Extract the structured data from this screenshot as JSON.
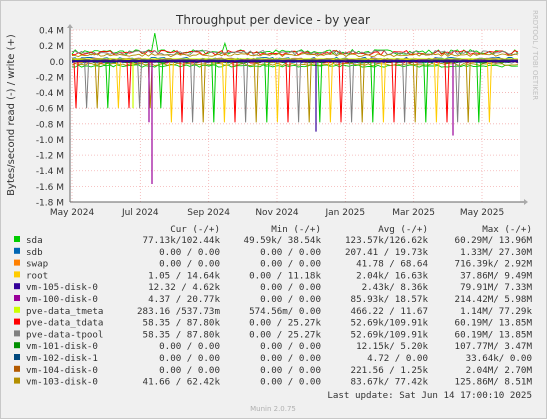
{
  "chart_data": {
    "type": "line",
    "title": "Throughput per device - by year",
    "ylabel": "Bytes/second read (-) / write (+)",
    "ylim": [
      -1800000,
      400000
    ],
    "yticks": [
      "0.4 M",
      "0.2 M",
      "0.0",
      "-0.2 M",
      "-0.4 M",
      "-0.6 M",
      "-0.8 M",
      "-1.0 M",
      "-1.2 M",
      "-1.4 M",
      "-1.6 M",
      "-1.8 M"
    ],
    "xticks": [
      "May 2024",
      "Jul 2024",
      "Sep 2024",
      "Nov 2024",
      "Jan 2025",
      "Mar 2025",
      "May 2025"
    ],
    "grid": true,
    "watermark": "RRDTOOL / TOBI OETIKER",
    "legend_header": [
      "Cur (-/+)",
      "Min (-/+)",
      "Avg (-/+)",
      "Max (-/+)"
    ],
    "series": [
      {
        "name": "sda",
        "color": "#00cc00",
        "cur": "77.13k/102.44k",
        "min": "49.59k/ 38.54k",
        "avg": "123.57k/126.62k",
        "max": "60.29M/ 13.96M"
      },
      {
        "name": "sdb",
        "color": "#0066b3",
        "cur": "0.00 /  0.00",
        "min": "0.00 /  0.00",
        "avg": "207.41 / 19.73k",
        "max": "1.33M/ 27.30M"
      },
      {
        "name": "swap",
        "color": "#ff8000",
        "cur": "0.00 /  0.00",
        "min": "0.00 /  0.00",
        "avg": "41.78 / 68.64",
        "max": "716.39k/  2.92M"
      },
      {
        "name": "root",
        "color": "#ffcc00",
        "cur": "1.05 / 14.64k",
        "min": "0.00 / 11.18k",
        "avg": "2.04k/ 16.63k",
        "max": "37.86M/  9.49M"
      },
      {
        "name": "vm-105-disk-0",
        "color": "#330099",
        "cur": "12.32 /  4.62k",
        "min": "0.00 /  0.00",
        "avg": "2.43k/  8.36k",
        "max": "79.91M/  7.33M"
      },
      {
        "name": "vm-100-disk-0",
        "color": "#990099",
        "cur": "4.37 / 20.77k",
        "min": "0.00 /  0.00",
        "avg": "85.93k/ 18.57k",
        "max": "214.42M/  5.98M"
      },
      {
        "name": "pve-data_tmeta",
        "color": "#ccff00",
        "cur": "283.16 /537.73m",
        "min": "574.56m/  0.00",
        "avg": "466.22 / 11.67",
        "max": "1.14M/ 77.29k"
      },
      {
        "name": "pve-data_tdata",
        "color": "#ff0000",
        "cur": "58.35 / 87.80k",
        "min": "0.00 / 25.27k",
        "avg": "52.69k/109.91k",
        "max": "60.19M/ 13.85M"
      },
      {
        "name": "pve-data-tpool",
        "color": "#808080",
        "cur": "58.35 / 87.80k",
        "min": "0.00 / 25.27k",
        "avg": "52.69k/109.91k",
        "max": "60.19M/ 13.85M"
      },
      {
        "name": "vm-101-disk-0",
        "color": "#008f00",
        "cur": "0.00 /  0.00",
        "min": "0.00 /  0.00",
        "avg": "12.15k/  5.20k",
        "max": "107.77M/  3.47M"
      },
      {
        "name": "vm-102-disk-1",
        "color": "#00487d",
        "cur": "0.00 /  0.00",
        "min": "0.00 /  0.00",
        "avg": "4.72 /  0.00",
        "max": "33.64k/  0.00"
      },
      {
        "name": "vm-104-disk-0",
        "color": "#b35a00",
        "cur": "0.00 /  0.00",
        "min": "0.00 /  0.00",
        "avg": "221.56 /  1.25k",
        "max": "2.04M/  2.70M"
      },
      {
        "name": "vm-103-disk-0",
        "color": "#b38f00",
        "cur": "41.66 / 62.42k",
        "min": "0.00 /  0.00",
        "avg": "83.67k/ 77.42k",
        "max": "125.86M/  8.51M"
      }
    ]
  },
  "footer": {
    "last_update": "Last update: Sat Jun 14 17:00:10 2025",
    "munin": "Munin 2.0.75"
  }
}
